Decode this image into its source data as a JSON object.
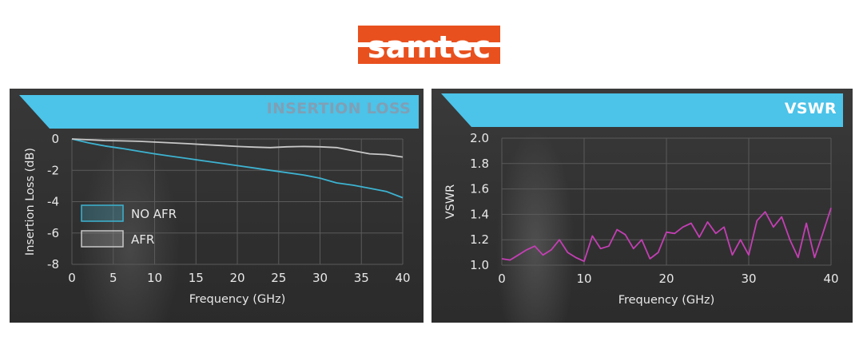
{
  "brand": {
    "name": "samtec",
    "color": "#e8501e"
  },
  "chart_data": [
    {
      "type": "line",
      "title": "INSERTION LOSS",
      "xlabel": "Frequency (GHz)",
      "ylabel": "Insertion Loss (dB)",
      "xlim": [
        0,
        40
      ],
      "ylim": [
        -8,
        0
      ],
      "xticks": [
        0,
        5,
        10,
        15,
        20,
        25,
        30,
        35,
        40
      ],
      "yticks": [
        0,
        -2,
        -4,
        -6,
        -8
      ],
      "grid": true,
      "legend_position": "left",
      "series": [
        {
          "name": "NO AFR",
          "color": "#3db3d1",
          "x": [
            0,
            2,
            4,
            6,
            8,
            10,
            12,
            14,
            16,
            18,
            20,
            22,
            24,
            26,
            28,
            30,
            32,
            34,
            36,
            38,
            40
          ],
          "y": [
            0,
            -0.25,
            -0.45,
            -0.6,
            -0.78,
            -0.95,
            -1.1,
            -1.25,
            -1.4,
            -1.55,
            -1.7,
            -1.85,
            -2.0,
            -2.15,
            -2.3,
            -2.5,
            -2.8,
            -2.95,
            -3.15,
            -3.35,
            -3.75
          ]
        },
        {
          "name": "AFR",
          "color": "#c8c8c8",
          "x": [
            0,
            2,
            4,
            6,
            8,
            10,
            12,
            14,
            16,
            18,
            20,
            22,
            24,
            26,
            28,
            30,
            32,
            34,
            36,
            38,
            40
          ],
          "y": [
            0,
            -0.05,
            -0.1,
            -0.12,
            -0.15,
            -0.2,
            -0.25,
            -0.3,
            -0.36,
            -0.42,
            -0.48,
            -0.52,
            -0.55,
            -0.5,
            -0.48,
            -0.5,
            -0.55,
            -0.75,
            -0.95,
            -1.0,
            -1.15
          ]
        }
      ]
    },
    {
      "type": "line",
      "title": "VSWR",
      "xlabel": "Frequency (GHz)",
      "ylabel": "VSWR",
      "xlim": [
        0,
        40
      ],
      "ylim": [
        1.0,
        2.0
      ],
      "xticks": [
        0,
        10,
        20,
        30,
        40
      ],
      "yticks": [
        2.0,
        1.8,
        1.6,
        1.4,
        1.2,
        1.0
      ],
      "grid": true,
      "series": [
        {
          "name": "",
          "color": "#c43fb4",
          "x": [
            0,
            1,
            2,
            3,
            4,
            5,
            6,
            7,
            8,
            9,
            10,
            11,
            12,
            13,
            14,
            15,
            16,
            17,
            18,
            19,
            20,
            21,
            22,
            23,
            24,
            25,
            26,
            27,
            28,
            29,
            30,
            31,
            32,
            33,
            34,
            35,
            36,
            37,
            38,
            39,
            40
          ],
          "y": [
            1.05,
            1.04,
            1.08,
            1.12,
            1.15,
            1.08,
            1.12,
            1.2,
            1.1,
            1.06,
            1.03,
            1.23,
            1.13,
            1.15,
            1.28,
            1.24,
            1.13,
            1.2,
            1.05,
            1.1,
            1.26,
            1.25,
            1.3,
            1.33,
            1.22,
            1.34,
            1.25,
            1.3,
            1.08,
            1.2,
            1.08,
            1.35,
            1.42,
            1.3,
            1.38,
            1.2,
            1.06,
            1.33,
            1.06,
            1.25,
            1.45
          ]
        }
      ]
    }
  ]
}
